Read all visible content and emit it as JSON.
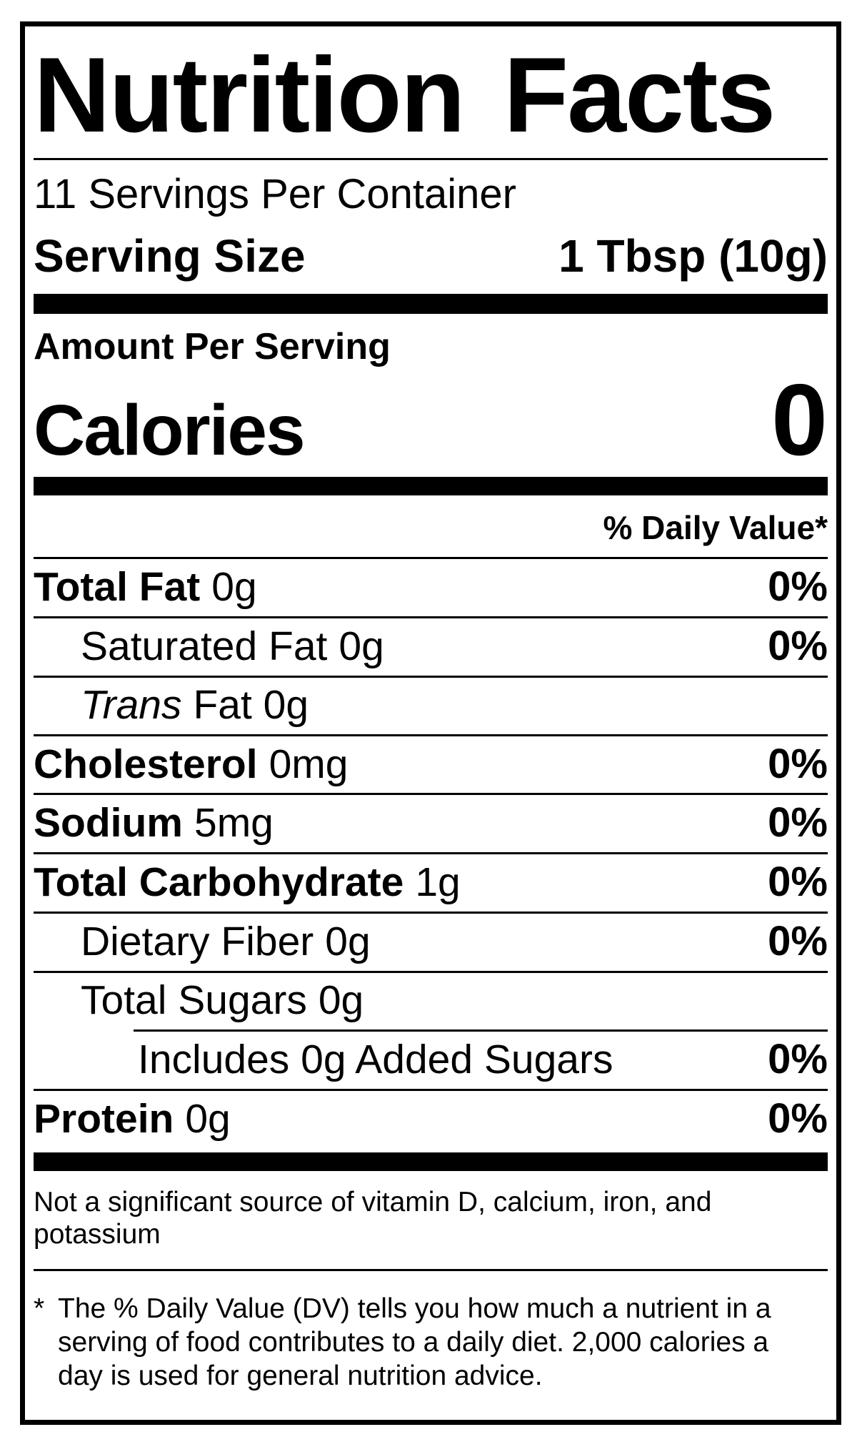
{
  "label": {
    "title": "Nutrition Facts",
    "servings_per_container": "11 Servings Per Container",
    "serving_size_label": "Serving Size",
    "serving_size_value": "1 Tbsp (10g)",
    "amount_per_serving": "Amount Per Serving",
    "calories_label": "Calories",
    "calories_value": "0",
    "daily_value_header": "% Daily Value*",
    "rows": [
      {
        "name": "Total Fat",
        "amount": "0g",
        "dv": "0%"
      },
      {
        "name": "Saturated Fat",
        "amount": "0g",
        "dv": "0%"
      },
      {
        "name": "Trans",
        "amount": "Fat 0g",
        "dv": ""
      },
      {
        "name": "Cholesterol",
        "amount": "0mg",
        "dv": "0%"
      },
      {
        "name": "Sodium",
        "amount": "5mg",
        "dv": "0%"
      },
      {
        "name": "Total Carbohydrate",
        "amount": "1g",
        "dv": "0%"
      },
      {
        "name": "Dietary Fiber",
        "amount": "0g",
        "dv": "0%"
      },
      {
        "name": "Total Sugars",
        "amount": "0g",
        "dv": ""
      },
      {
        "name": "Includes 0g Added Sugars",
        "amount": "",
        "dv": "0%"
      },
      {
        "name": "Protein",
        "amount": "0g",
        "dv": "0%"
      }
    ],
    "not_significant_lines": [
      "Not a significant source of vitamin D, calcium, iron, and",
      "potassium"
    ],
    "footnote_marker": "*",
    "footnote_lines": [
      "The % Daily Value (DV) tells you how much a nutrient in a",
      "serving of food contributes to a daily diet. 2,000 calories a",
      "day is used for general nutrition advice."
    ],
    "colors": {
      "ink": "#000000",
      "paper": "#ffffff"
    }
  }
}
